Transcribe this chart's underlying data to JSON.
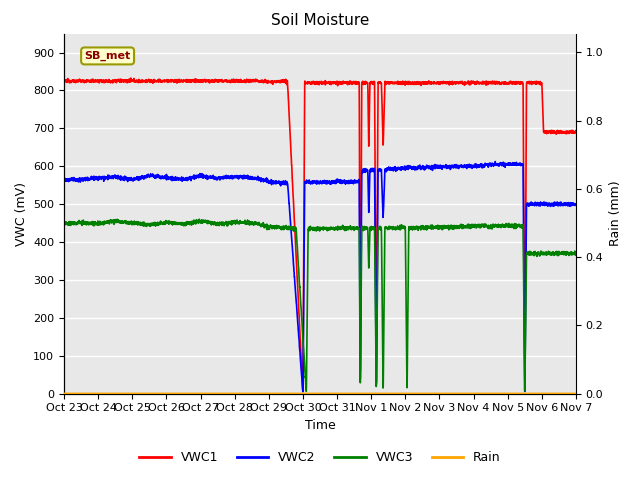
{
  "title": "Soil Moisture",
  "xlabel": "Time",
  "ylabel_left": "VWC (mV)",
  "ylabel_right": "Rain (mm)",
  "annotation_text": "SB_met",
  "ylim_left": [
    0,
    950
  ],
  "ylim_right": [
    0,
    1.055
  ],
  "yticks_left": [
    0,
    100,
    200,
    300,
    400,
    500,
    600,
    700,
    800,
    900
  ],
  "yticks_right": [
    0.0,
    0.2,
    0.4,
    0.6,
    0.8,
    1.0
  ],
  "xtick_labels": [
    "Oct 23",
    "Oct 24",
    "Oct 25",
    "Oct 26",
    "Oct 27",
    "Oct 28",
    "Oct 29",
    "Oct 30",
    "Oct 31",
    "Nov 1",
    "Nov 2",
    "Nov 3",
    "Nov 4",
    "Nov 5",
    "Nov 6",
    "Nov 7"
  ],
  "background_color": "#ffffff",
  "plot_bg_color": "#e8e8e8",
  "grid_color": "#ffffff",
  "legend_colors": {
    "VWC1": "#ff0000",
    "VWC2": "#0000ff",
    "VWC3": "#008000",
    "Rain": "#ffa500"
  },
  "title_fontsize": 11,
  "label_fontsize": 9,
  "tick_fontsize": 8
}
